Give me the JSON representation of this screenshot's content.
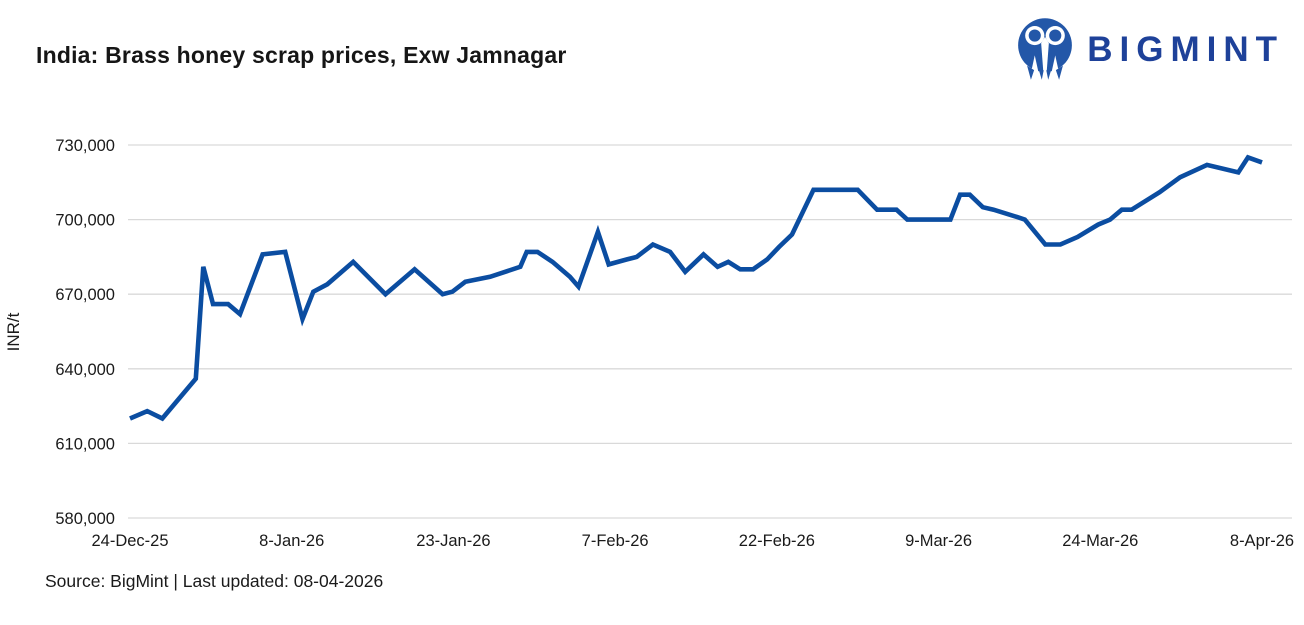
{
  "header": {
    "title": "India: Brass honey scrap prices, Exw Jamnagar"
  },
  "logo": {
    "text": "BIGMINT",
    "icon": "bigmint-people-icon",
    "text_color": "#1e4199",
    "icon_color": "#2357a8"
  },
  "footer": {
    "source": "Source: BigMint | Last updated: 08-04-2026"
  },
  "chart_data": {
    "type": "line",
    "title": "India: Brass honey scrap prices, Exw Jamnagar",
    "xlabel": "",
    "ylabel": "INR/t",
    "ylim": [
      580000,
      730000
    ],
    "y_ticks": [
      730000,
      700000,
      670000,
      640000,
      610000,
      580000
    ],
    "y_tick_labels": [
      "730,000",
      "700,000",
      "670,000",
      "640,000",
      "610,000",
      "580,000"
    ],
    "x_span_days": 105,
    "x_tick_days": [
      0,
      15,
      30,
      45,
      60,
      75,
      90,
      105
    ],
    "x_tick_labels": [
      "24-Dec-25",
      "8-Jan-26",
      "23-Jan-26",
      "7-Feb-26",
      "22-Feb-26",
      "9-Mar-26",
      "24-Mar-26",
      "8-Apr-26"
    ],
    "grid": "horizontal",
    "legend": "none",
    "line_color": "#0b4da1",
    "grid_color": "#d9d9d9",
    "series": [
      {
        "name": "Brass honey scrap price, Exw Jamnagar (INR/t)",
        "points": [
          [
            0,
            620000
          ],
          [
            1.6,
            623000
          ],
          [
            3,
            620000
          ],
          [
            6.1,
            636000
          ],
          [
            6.8,
            681000
          ],
          [
            7.7,
            666000
          ],
          [
            9.1,
            666000
          ],
          [
            10.2,
            662000
          ],
          [
            12.3,
            686000
          ],
          [
            14.4,
            687000
          ],
          [
            16,
            660000
          ],
          [
            17,
            671000
          ],
          [
            18.3,
            674000
          ],
          [
            20.7,
            683000
          ],
          [
            23.7,
            670000
          ],
          [
            26.4,
            680000
          ],
          [
            29,
            670000
          ],
          [
            29.9,
            671000
          ],
          [
            31.1,
            675000
          ],
          [
            33.4,
            677000
          ],
          [
            36.2,
            681000
          ],
          [
            36.8,
            687000
          ],
          [
            37.8,
            687000
          ],
          [
            39.2,
            683000
          ],
          [
            40.8,
            677000
          ],
          [
            41.6,
            673000
          ],
          [
            43.4,
            695000
          ],
          [
            44.4,
            682000
          ],
          [
            46.1,
            684000
          ],
          [
            47,
            685000
          ],
          [
            48.5,
            690000
          ],
          [
            50.1,
            687000
          ],
          [
            51.5,
            679000
          ],
          [
            53.2,
            686000
          ],
          [
            54.5,
            681000
          ],
          [
            55.5,
            683000
          ],
          [
            56.6,
            680000
          ],
          [
            57.8,
            680000
          ],
          [
            59.1,
            684000
          ],
          [
            60.2,
            689000
          ],
          [
            61.4,
            694000
          ],
          [
            63.4,
            712000
          ],
          [
            67.5,
            712000
          ],
          [
            69.3,
            704000
          ],
          [
            71.1,
            704000
          ],
          [
            72.1,
            700000
          ],
          [
            76.1,
            700000
          ],
          [
            77,
            710000
          ],
          [
            77.9,
            710000
          ],
          [
            79.1,
            705000
          ],
          [
            80.1,
            704000
          ],
          [
            82.3,
            701000
          ],
          [
            83,
            700000
          ],
          [
            84.9,
            690000
          ],
          [
            86.3,
            690000
          ],
          [
            87.9,
            693000
          ],
          [
            89.8,
            698000
          ],
          [
            90.9,
            700000
          ],
          [
            92,
            704000
          ],
          [
            92.9,
            704000
          ],
          [
            95.5,
            711000
          ],
          [
            97.4,
            717000
          ],
          [
            99.9,
            722000
          ],
          [
            102.8,
            719000
          ],
          [
            103.7,
            725000
          ],
          [
            105,
            723000
          ]
        ]
      }
    ]
  }
}
